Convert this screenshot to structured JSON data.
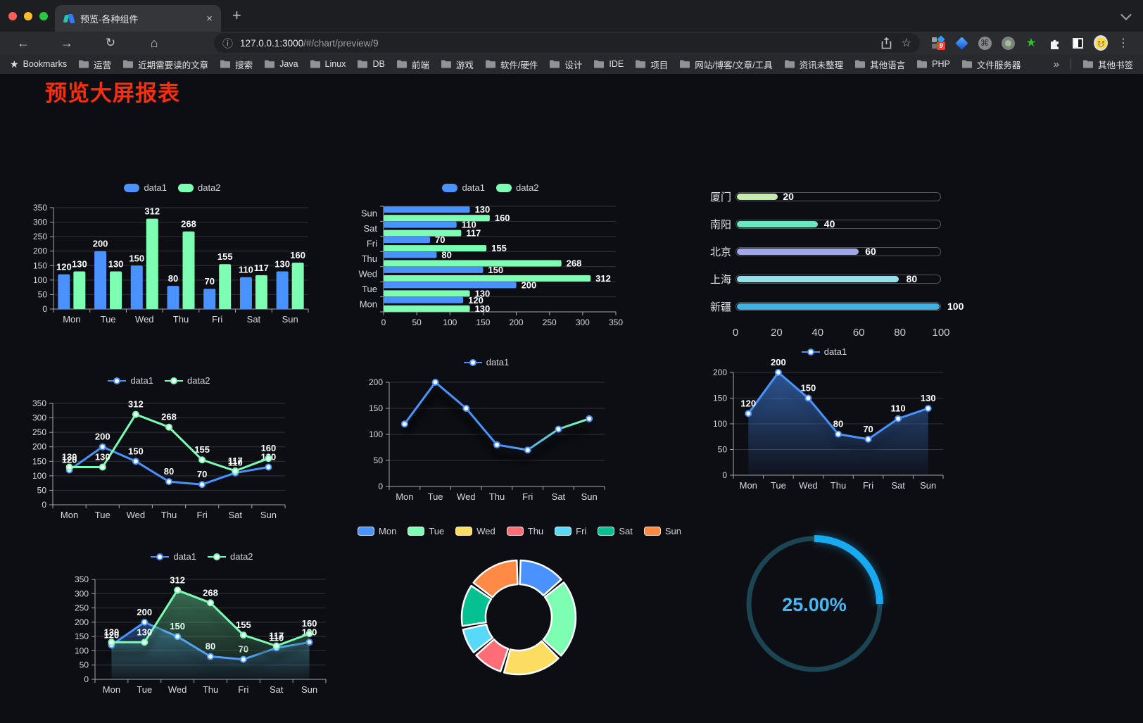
{
  "browser": {
    "tab_title": "预览-各种组件",
    "url_host": "127.0.0.1:3000",
    "url_path": "/#/chart/preview/9",
    "bookmarks_label": "Bookmarks",
    "bookmarks": [
      "运营",
      "近期需要读的文章",
      "搜索",
      "Java",
      "Linux",
      "DB",
      "前端",
      "游戏",
      "软件/硬件",
      "设计",
      "IDE",
      "项目",
      "网站/博客/文章/工具",
      "资讯未整理",
      "其他语言",
      "PHP",
      "文件服务器"
    ],
    "other_bookmarks": "其他书签",
    "extension_badge": "9",
    "glyphs": {
      "close_tab": "×",
      "new_tab": "+",
      "menu": "⋮",
      "star_outline": "☆",
      "info": "ⓘ",
      "overflow": "»",
      "bookmarks_star": "★",
      "cmd": "⌘",
      "green_star": "★",
      "back": "←",
      "forward": "→",
      "reload": "↻",
      "home": "⌂"
    },
    "extensions": [
      "grid-capture-extension-icon",
      "gem-extension-icon",
      "command-extension-icon",
      "dot-extension-icon",
      "green-star-extension-icon",
      "puzzle-extension-icon",
      "contrast-extension-icon",
      "profile-avatar"
    ]
  },
  "page": {
    "title": "预览大屏报表",
    "title_color": "#fa2f10",
    "background": "#0d0e13"
  },
  "theme": {
    "axis": "#a3a5b0",
    "grid": "#31333b",
    "tick_text": "#d9dae0",
    "value_label": "#ffffff",
    "legend_text": "#d3d4dc",
    "data1": "#4992ff",
    "data2": "#7cffb2"
  },
  "chart_data": [
    {
      "id": "bar-grouped",
      "type": "bar",
      "orientation": "vertical",
      "categories": [
        "Mon",
        "Tue",
        "Wed",
        "Thu",
        "Fri",
        "Sat",
        "Sun"
      ],
      "series": [
        {
          "name": "data1",
          "color": "#4992ff",
          "values": [
            120,
            200,
            150,
            80,
            70,
            110,
            130
          ]
        },
        {
          "name": "data2",
          "color": "#7cffb2",
          "values": [
            130,
            130,
            312,
            268,
            155,
            117,
            160
          ]
        }
      ],
      "ylim": [
        0,
        350
      ],
      "yticks": [
        0,
        50,
        100,
        150,
        200,
        250,
        300,
        350
      ],
      "grid": true,
      "legend_position": "top",
      "value_labels": true
    },
    {
      "id": "bar-horizontal",
      "type": "bar",
      "orientation": "horizontal",
      "categories": [
        "Mon",
        "Tue",
        "Wed",
        "Thu",
        "Fri",
        "Sat",
        "Sun"
      ],
      "category_order": "Mon at bottom, Sun at top",
      "series": [
        {
          "name": "data1",
          "color": "#4992ff",
          "values": [
            120,
            200,
            150,
            80,
            70,
            110,
            130
          ]
        },
        {
          "name": "data2",
          "color": "#7cffb2",
          "values": [
            130,
            130,
            312,
            268,
            155,
            117,
            160
          ]
        }
      ],
      "xlim": [
        0,
        350
      ],
      "xticks": [
        0,
        50,
        100,
        150,
        200,
        250,
        300,
        350
      ],
      "grid": true,
      "legend_position": "top",
      "value_labels": true
    },
    {
      "id": "progress-bars",
      "type": "bar",
      "variant": "progress-list",
      "items": [
        {
          "label": "厦门",
          "value": 20,
          "color": "#c4ebad"
        },
        {
          "label": "南阳",
          "value": 40,
          "color": "#6be6c1"
        },
        {
          "label": "北京",
          "value": 60,
          "color": "#a0a7e6"
        },
        {
          "label": "上海",
          "value": 80,
          "color": "#96dee8"
        },
        {
          "label": "新疆",
          "value": 100,
          "color": "#3fb1e3"
        }
      ],
      "max": 100,
      "xticks": [
        0,
        20,
        40,
        60,
        80,
        100
      ],
      "value_labels": true
    },
    {
      "id": "line-dual",
      "type": "line",
      "categories": [
        "Mon",
        "Tue",
        "Wed",
        "Thu",
        "Fri",
        "Sat",
        "Sun"
      ],
      "series": [
        {
          "name": "data1",
          "color": "#4992ff",
          "values": [
            120,
            200,
            150,
            80,
            70,
            110,
            130
          ]
        },
        {
          "name": "data2",
          "color": "#7cffb2",
          "values": [
            130,
            130,
            312,
            268,
            155,
            117,
            160
          ]
        }
      ],
      "ylim": [
        0,
        350
      ],
      "yticks": [
        0,
        50,
        100,
        150,
        200,
        250,
        300,
        350
      ],
      "grid": true,
      "legend_position": "top",
      "value_labels": true,
      "markers": "circle"
    },
    {
      "id": "line-gradient",
      "type": "line",
      "variant": "gradient-stroke-shadow",
      "categories": [
        "Mon",
        "Tue",
        "Wed",
        "Thu",
        "Fri",
        "Sat",
        "Sun"
      ],
      "series": [
        {
          "name": "data1",
          "color": "#4992ff",
          "gradient": [
            "#4992ff",
            "#7cffb2"
          ],
          "values": [
            120,
            200,
            150,
            80,
            70,
            110,
            130
          ]
        }
      ],
      "ylim": [
        0,
        200
      ],
      "yticks": [
        0,
        50,
        100,
        150,
        200
      ],
      "grid": true,
      "legend_position": "top",
      "value_labels": false
    },
    {
      "id": "area-single",
      "type": "area",
      "categories": [
        "Mon",
        "Tue",
        "Wed",
        "Thu",
        "Fri",
        "Sat",
        "Sun"
      ],
      "series": [
        {
          "name": "data1",
          "color": "#4992ff",
          "values": [
            120,
            200,
            150,
            80,
            70,
            110,
            130
          ]
        }
      ],
      "ylim": [
        0,
        200
      ],
      "yticks": [
        0,
        50,
        100,
        150,
        200
      ],
      "grid": true,
      "legend_position": "top",
      "value_labels": true
    },
    {
      "id": "line-area-dual",
      "type": "area",
      "categories": [
        "Mon",
        "Tue",
        "Wed",
        "Thu",
        "Fri",
        "Sat",
        "Sun"
      ],
      "series": [
        {
          "name": "data1",
          "color": "#4992ff",
          "values": [
            120,
            200,
            150,
            80,
            70,
            110,
            130
          ]
        },
        {
          "name": "data2",
          "color": "#7cffb2",
          "values": [
            130,
            130,
            312,
            268,
            155,
            117,
            160
          ]
        }
      ],
      "ylim": [
        0,
        350
      ],
      "yticks": [
        0,
        50,
        100,
        150,
        200,
        250,
        300,
        350
      ],
      "grid": true,
      "legend_position": "top",
      "value_labels": true
    },
    {
      "id": "donut",
      "type": "pie",
      "inner_radius_ratio": 0.58,
      "labels": [
        "Mon",
        "Tue",
        "Wed",
        "Thu",
        "Fri",
        "Sat",
        "Sun"
      ],
      "values": [
        120,
        200,
        150,
        80,
        70,
        110,
        130
      ],
      "colors": [
        "#4992ff",
        "#7cffb2",
        "#fddd60",
        "#ff6e76",
        "#58d9f9",
        "#05c091",
        "#ff8a45"
      ],
      "border_color": "#ffffff",
      "legend_position": "top"
    },
    {
      "id": "gauge",
      "type": "gauge",
      "value": 25,
      "max": 100,
      "display": "25.00%",
      "color": "#18aaf1",
      "track_color": "#1c4553",
      "text_color": "#4ab7f5"
    }
  ]
}
